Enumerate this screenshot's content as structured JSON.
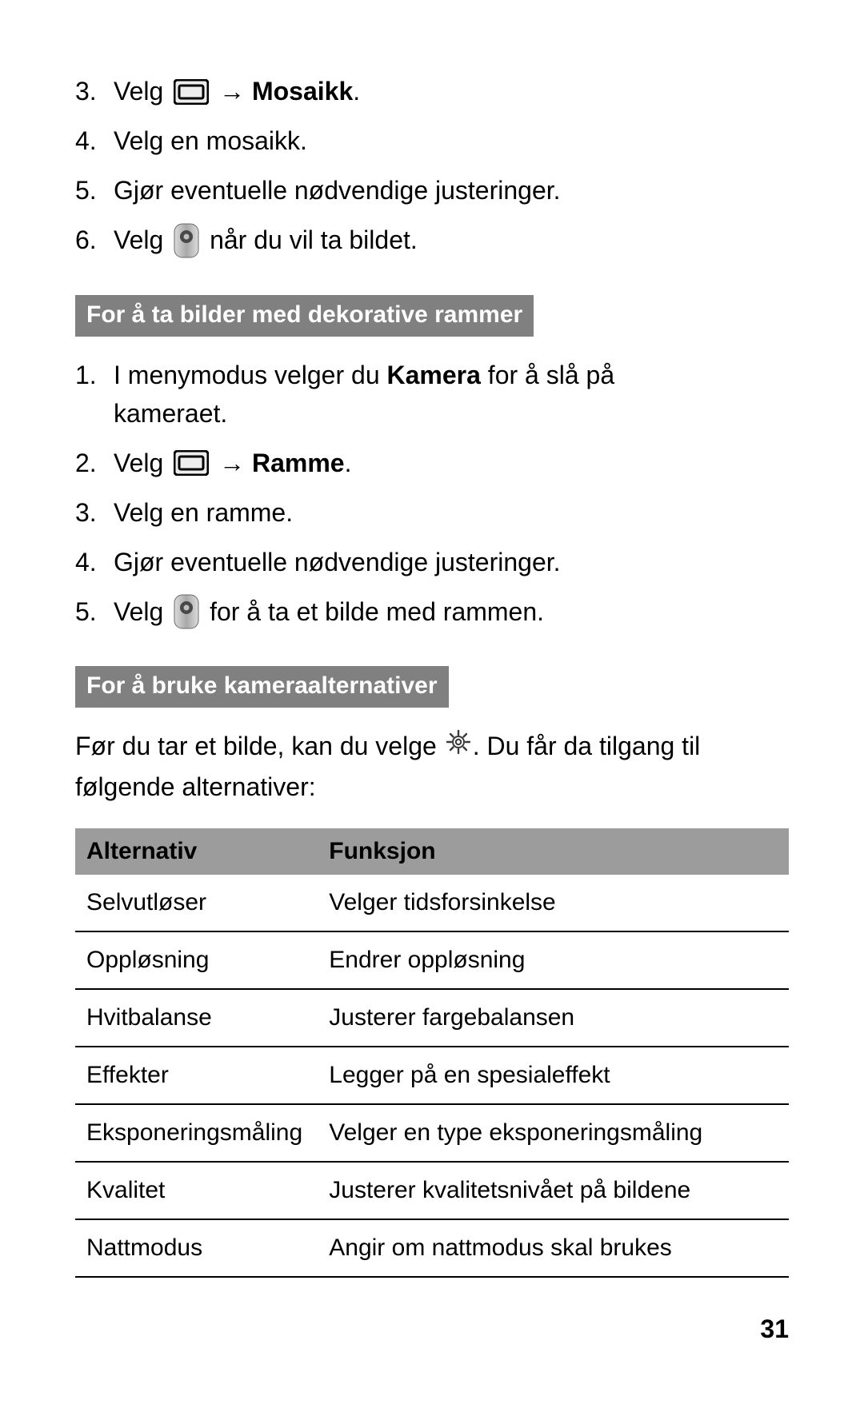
{
  "mosaic_steps": [
    {
      "num": "3.",
      "pre": "Velg ",
      "icon": "menu",
      "post": " → ",
      "bold": "Mosaikk",
      "tail": "."
    },
    {
      "num": "4.",
      "pre": "Velg en mosaikk."
    },
    {
      "num": "5.",
      "pre": "Gjør eventuelle nødvendige justeringer."
    },
    {
      "num": "6.",
      "pre": "Velg ",
      "icon": "camera",
      "post": " når du vil ta bildet."
    }
  ],
  "section1_title": "For å ta bilder med dekorative rammer",
  "frame_steps": [
    {
      "num": "1.",
      "lines": [
        "I menymodus velger du ",
        "Kamera",
        " for å slå på",
        "kameraet."
      ],
      "boldIndex": 1
    },
    {
      "num": "2.",
      "pre": "Velg ",
      "icon": "menu",
      "post": " → ",
      "bold": "Ramme",
      "tail": "."
    },
    {
      "num": "3.",
      "pre": "Velg en ramme."
    },
    {
      "num": "4.",
      "pre": "Gjør eventuelle nødvendige justeringer."
    },
    {
      "num": "5.",
      "pre": "Velg ",
      "icon": "camera",
      "post": " for å ta et bilde med rammen."
    }
  ],
  "section2_title": "For å bruke kameraalternativer",
  "intro_pre": "Før du tar et bilde, kan du velge ",
  "intro_post": ". Du får da tilgang til følgende alternativer:",
  "table": {
    "header_alt": "Alternativ",
    "header_func": "Funksjon",
    "rows": [
      {
        "alt": "Selvutløser",
        "func": "Velger tidsforsinkelse"
      },
      {
        "alt": "Oppløsning",
        "func": "Endrer oppløsning"
      },
      {
        "alt": "Hvitbalanse",
        "func": "Justerer fargebalansen"
      },
      {
        "alt": "Effekter",
        "func": "Legger på en spesialeffekt"
      },
      {
        "alt": "Eksponeringsmåling",
        "func": "Velger en type eksponeringsmåling"
      },
      {
        "alt": "Kvalitet",
        "func": "Justerer kvalitetsnivået på bildene"
      },
      {
        "alt": "Nattmodus",
        "func": "Angir om nattmodus skal brukes"
      }
    ]
  },
  "page_number": "31",
  "colors": {
    "bar_bg": "#808080",
    "bar_fg": "#ffffff",
    "table_header_bg": "#9c9c9c",
    "rule": "#000000",
    "text": "#000000",
    "page_bg": "#ffffff"
  }
}
